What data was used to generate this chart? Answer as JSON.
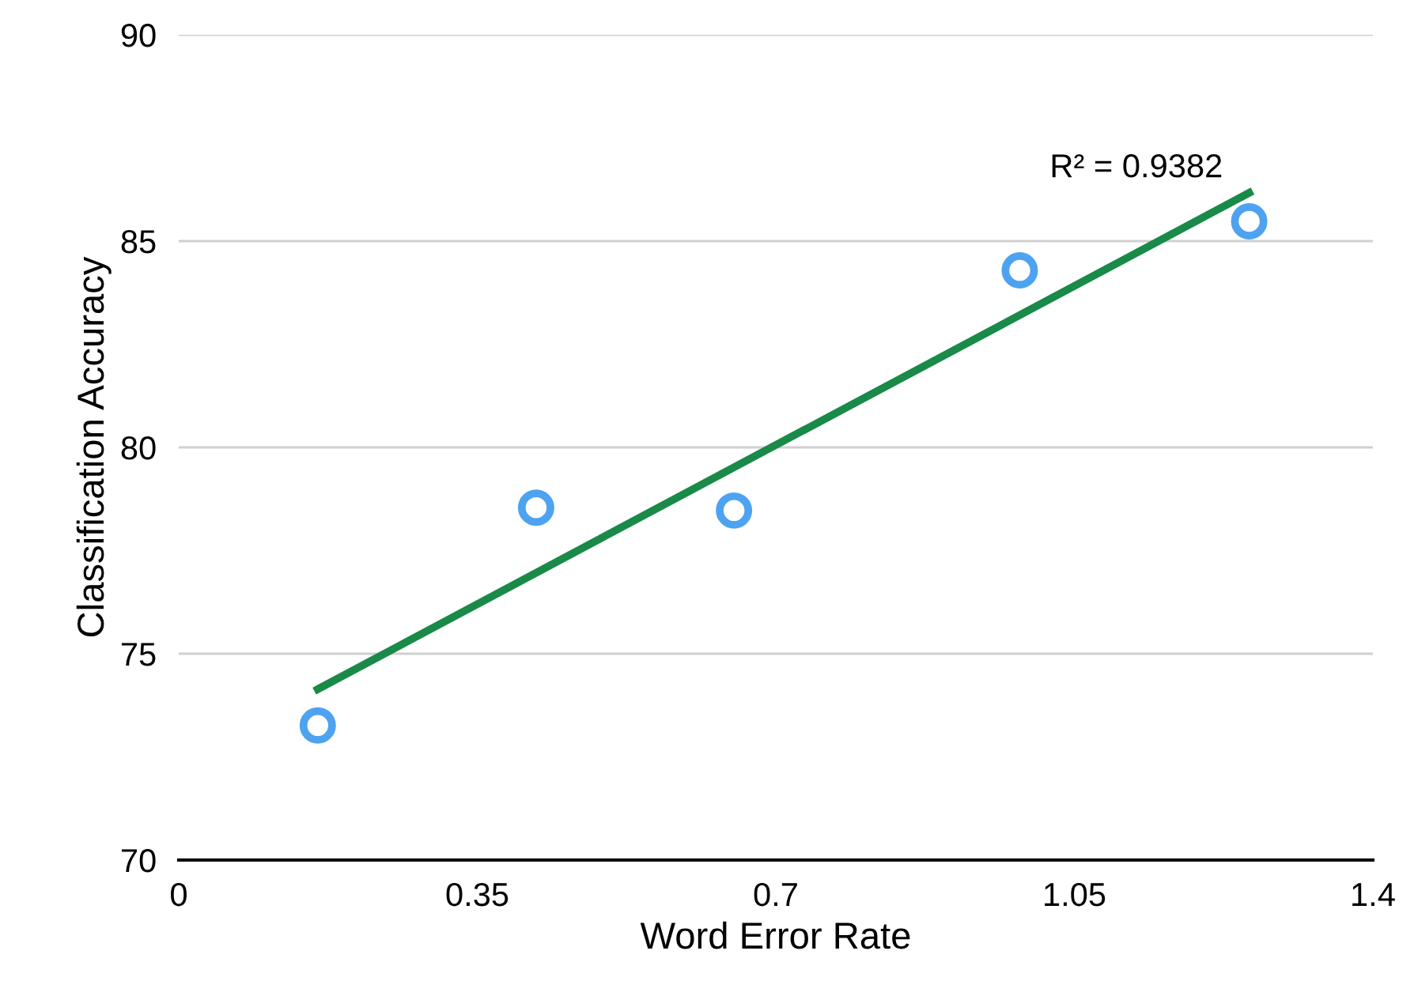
{
  "chart_data": {
    "type": "scatter",
    "xlabel": "Word Error Rate",
    "ylabel": "Classification Accuracy",
    "xlim": [
      0,
      1.4
    ],
    "xticks": [
      0,
      0.35,
      0.7,
      1.05,
      1.4
    ],
    "ylim": [
      70,
      90
    ],
    "yticks": [
      70,
      75,
      80,
      85,
      90
    ],
    "grid": "y",
    "legend": false,
    "series": [
      {
        "marker": "circle",
        "color": "#4da3f0",
        "x": [
          0.163,
          0.419,
          0.651,
          0.986,
          1.255
        ],
        "values": [
          73.26,
          78.54,
          78.47,
          84.29,
          85.48
        ]
      },
      {
        "type": "line",
        "color": "#198a48",
        "x": [
          0.163,
          1.255
        ],
        "values": [
          74.14,
          86.17
        ],
        "line_style": "solid"
      }
    ],
    "annotations": [
      {
        "text": "R² = 0.9382",
        "x": 1.255,
        "y": 86.17
      }
    ]
  }
}
